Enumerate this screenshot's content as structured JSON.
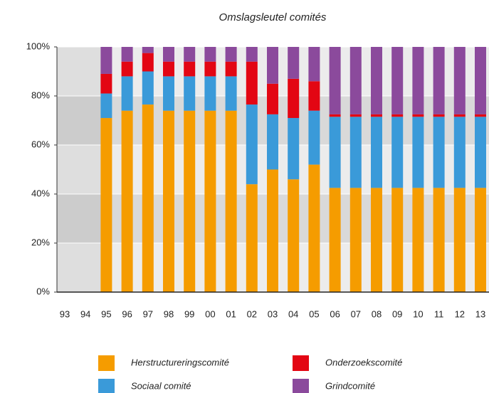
{
  "chart_data": {
    "type": "stacked_bar",
    "title": "Omslagsleutel comités",
    "categories": [
      "93",
      "94",
      "95",
      "96",
      "97",
      "98",
      "99",
      "00",
      "01",
      "02",
      "03",
      "04",
      "05",
      "06",
      "07",
      "08",
      "09",
      "10",
      "11",
      "12",
      "13"
    ],
    "series": [
      {
        "name": "Herstructureringscomité",
        "color": "#f59c00",
        "values": [
          null,
          null,
          71,
          74,
          76.5,
          74,
          74,
          74,
          74,
          44,
          50,
          46,
          52,
          42.5,
          42.5,
          42.5,
          42.5,
          42.5,
          42.5,
          42.5,
          42.5
        ]
      },
      {
        "name": "Sociaal comité",
        "color": "#3a9ad9",
        "values": [
          null,
          null,
          10,
          14,
          13.5,
          14,
          14,
          14,
          14,
          32.5,
          22.5,
          25,
          22,
          29,
          29,
          29,
          29,
          29,
          29,
          29,
          29
        ]
      },
      {
        "name": "Onderzoekscomité",
        "color": "#e30613",
        "values": [
          null,
          null,
          8,
          6,
          7.5,
          6,
          6,
          6,
          6,
          17.5,
          12.5,
          16,
          12,
          1,
          1,
          1,
          1,
          1,
          1,
          1,
          1
        ]
      },
      {
        "name": "Grindcomité",
        "color": "#8b4a9c",
        "values": [
          null,
          null,
          11,
          6,
          2.5,
          6,
          6,
          6,
          6,
          6,
          15,
          13,
          14,
          27.5,
          27.5,
          27.5,
          27.5,
          27.5,
          27.5,
          27.5,
          27.5
        ]
      }
    ],
    "ylim": [
      0,
      100
    ],
    "yticks": [
      {
        "value": 0,
        "label": "0%"
      },
      {
        "value": 20,
        "label": "20%"
      },
      {
        "value": 40,
        "label": "40%"
      },
      {
        "value": 60,
        "label": "60%"
      },
      {
        "value": 80,
        "label": "80%"
      },
      {
        "value": 100,
        "label": "100%"
      }
    ],
    "grid": true
  }
}
